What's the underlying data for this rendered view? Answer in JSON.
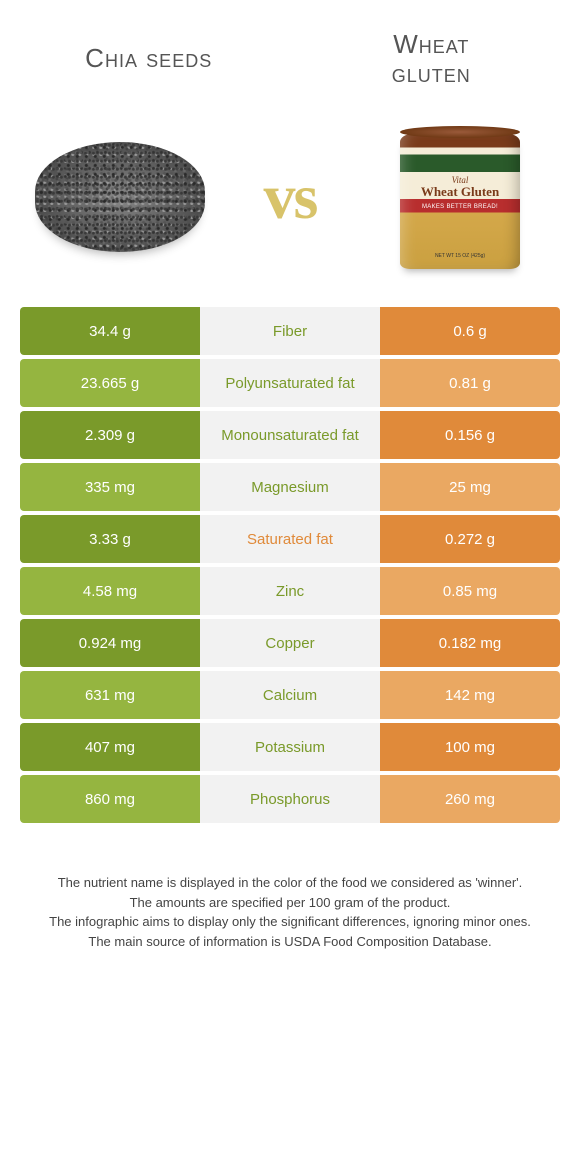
{
  "titles": {
    "left": "Chia seeds",
    "right_line1": "Wheat",
    "right_line2": "gluten"
  },
  "vs": "vs",
  "can": {
    "vital": "Vital",
    "name": "Wheat Gluten",
    "tagline": "MAKES BETTER BREAD!",
    "net": "NET WT 15 OZ (425g)"
  },
  "colors": {
    "green_dark": "#7a9a2a",
    "green_light": "#95b540",
    "orange_dark": "#e08a3a",
    "orange_light": "#eaa862",
    "mid_bg": "#f2f2f2",
    "mid_text": "#888888",
    "vs_color": "#d8c36a"
  },
  "rows": [
    {
      "left": "34.4 g",
      "label": "Fiber",
      "right": "0.6 g",
      "winner": "left",
      "shade": "dark"
    },
    {
      "left": "23.665 g",
      "label": "Polyunsaturated fat",
      "right": "0.81 g",
      "winner": "left",
      "shade": "light"
    },
    {
      "left": "2.309 g",
      "label": "Monounsaturated fat",
      "right": "0.156 g",
      "winner": "left",
      "shade": "dark"
    },
    {
      "left": "335 mg",
      "label": "Magnesium",
      "right": "25 mg",
      "winner": "left",
      "shade": "light"
    },
    {
      "left": "3.33 g",
      "label": "Saturated fat",
      "right": "0.272 g",
      "winner": "right",
      "shade": "dark"
    },
    {
      "left": "4.58 mg",
      "label": "Zinc",
      "right": "0.85 mg",
      "winner": "left",
      "shade": "light"
    },
    {
      "left": "0.924 mg",
      "label": "Copper",
      "right": "0.182 mg",
      "winner": "left",
      "shade": "dark"
    },
    {
      "left": "631 mg",
      "label": "Calcium",
      "right": "142 mg",
      "winner": "left",
      "shade": "light"
    },
    {
      "left": "407 mg",
      "label": "Potassium",
      "right": "100 mg",
      "winner": "left",
      "shade": "dark"
    },
    {
      "left": "860 mg",
      "label": "Phosphorus",
      "right": "260 mg",
      "winner": "left",
      "shade": "light"
    }
  ],
  "footnotes": [
    "The nutrient name is displayed in the color of the food we considered as 'winner'.",
    "The amounts are specified per 100 gram of the product.",
    "The infographic aims to display only the significant differences, ignoring minor ones.",
    "The main source of information is USDA Food Composition Database."
  ]
}
